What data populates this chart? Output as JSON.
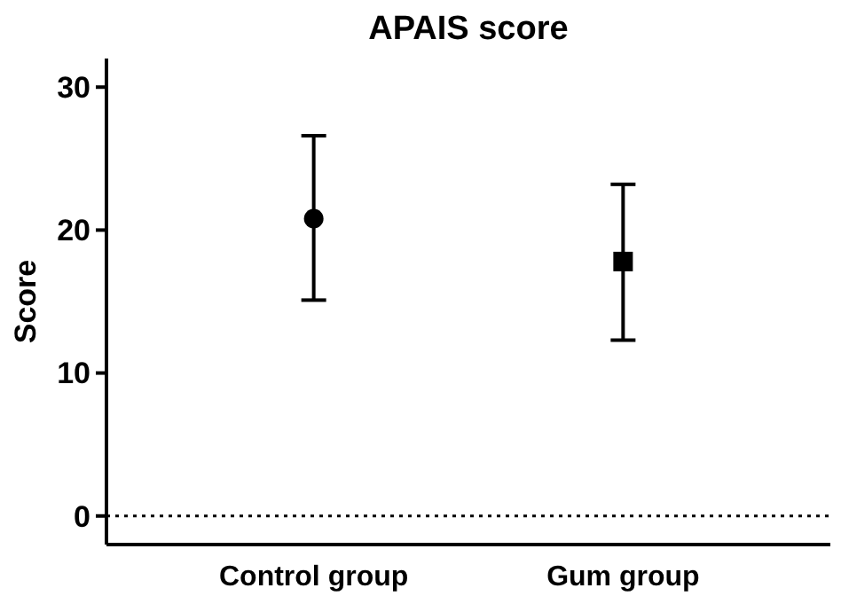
{
  "chart_data": {
    "type": "scatter",
    "title": "APAIS score",
    "ylabel": "Score",
    "categories": [
      "Control group",
      "Gum group"
    ],
    "series": [
      {
        "color": "#000000",
        "marker": "circle",
        "values": [
          20.8,
          null
        ],
        "errors": [
          [
            15.1,
            26.6
          ],
          null
        ]
      },
      {
        "color": "#000000",
        "marker": "square",
        "values": [
          null,
          17.8
        ],
        "errors": [
          null,
          [
            12.3,
            23.2
          ]
        ]
      }
    ],
    "ylim": [
      -2,
      32
    ],
    "yticks": [
      0,
      10,
      20,
      30
    ],
    "grid": false,
    "ref_lines": [
      {
        "axis": "y",
        "value": 0,
        "line_style": "dotted",
        "color": "#000000"
      }
    ]
  }
}
